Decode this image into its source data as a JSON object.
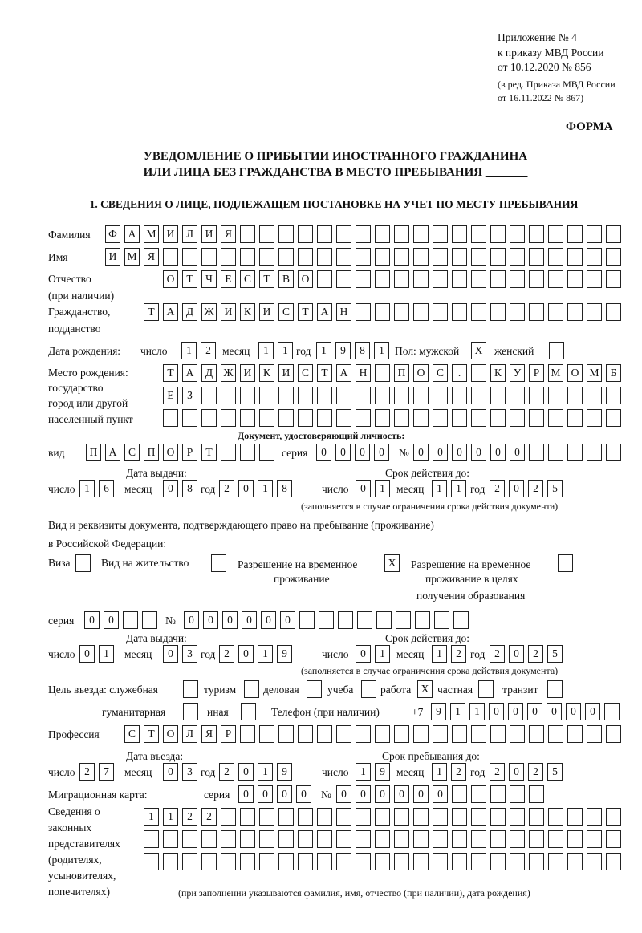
{
  "header": {
    "annex_line1": "Приложение № 4",
    "annex_line2": "к приказу МВД России",
    "annex_line3": "от 10.12.2020 № 856",
    "annex_line4": "(в ред. Приказа МВД России",
    "annex_line5": "от 16.11.2022 № 867)",
    "form_label": "ФОРМА",
    "title_line1": "УВЕДОМЛЕНИЕ О ПРИБЫТИИ ИНОСТРАННОГО ГРАЖДАНИНА",
    "title_line2": "ИЛИ ЛИЦА БЕЗ ГРАЖДАНСТВА В МЕСТО ПРЕБЫВАНИЯ _______",
    "section1": "1. СВЕДЕНИЯ О ЛИЦЕ, ПОДЛЕЖАЩЕМ ПОСТАНОВКЕ НА УЧЕТ ПО МЕСТУ ПРЕБЫВАНИЯ"
  },
  "labels": {
    "surname": "Фамилия",
    "name": "Имя",
    "patronymic": "Отчество",
    "patronymic2": "(при наличии)",
    "citizenship": "Гражданство,",
    "citizenship2": "подданство",
    "birth_date": "Дата рождения:",
    "day": "число",
    "month": "месяц",
    "year": "год",
    "sex": "Пол: мужской",
    "female": "женский",
    "birth_place": "Место рождения:",
    "state": "государство",
    "city": "город или другой",
    "settlement": "населенный пункт",
    "id_doc": "Документ, удостоверяющий личность:",
    "kind": "вид",
    "series": "серия",
    "number": "№",
    "issue_date": "Дата выдачи:",
    "valid_until": "Срок действия до:",
    "validity_note": "(заполняется в случае ограничения срока действия документа)",
    "right_doc1": "Вид и реквизиты документа, подтверждающего право на пребывание (проживание)",
    "right_doc2": "в Российской Федерации:",
    "visa": "Виза",
    "residence": "Вид на жительство",
    "temp1": "Разрешение на временное",
    "temp2": "проживание",
    "edu1": "Разрешение на временное",
    "edu2": "проживание в целях",
    "edu3": "получения образования",
    "purpose": "Цель въезда: служебная",
    "tourism": "туризм",
    "business": "деловая",
    "study": "учеба",
    "work": "работа",
    "private": "частная",
    "transit": "транзит",
    "humanitarian": "гуманитарная",
    "other": "иная",
    "phone": "Телефон (при наличии)",
    "phone_prefix": "+7",
    "profession": "Профессия",
    "entry_date": "Дата въезда:",
    "stay_until": "Срок пребывания до:",
    "migration_card": "Миграционная карта:",
    "rep1": "Сведения о",
    "rep2": "законных",
    "rep3": "представителях",
    "rep4": "(родителях,",
    "rep5": "усыновителях,",
    "rep6": "попечителях)",
    "rep_note": "(при заполнении указываются фамилия, имя, отчество (при наличии), дата рождения)"
  },
  "fields": {
    "surname": "ФАМИЛИЯ",
    "name": "ИМЯ",
    "patronymic": "ОТЧЕСТВО",
    "citizenship": "ТАДЖИКИСТАН",
    "birth_day": "12",
    "birth_month": "11",
    "birth_year": "1981",
    "sex_male": "X",
    "sex_female": "",
    "birth_place_1": "ТАДЖИКИСТАН ПОС. КУРМОМБ",
    "birth_place_2": "ЕЗ",
    "birth_place_3": "",
    "doc_kind": "ПАСПОРТ",
    "doc_series": "0000",
    "doc_number": "000000",
    "doc_issue_day": "16",
    "doc_issue_month": "08",
    "doc_issue_year": "2018",
    "doc_valid_day": "01",
    "doc_valid_month": "11",
    "doc_valid_year": "2025",
    "right_visa": "",
    "right_residence": "",
    "right_temp": "X",
    "right_edu": "",
    "right_series": "00",
    "right_number": "000000",
    "right_issue_day": "01",
    "right_issue_month": "03",
    "right_issue_year": "2019",
    "right_valid_day": "01",
    "right_valid_month": "12",
    "right_valid_year": "2025",
    "purpose_official": "",
    "purpose_tourism": "",
    "purpose_business": "",
    "purpose_study": "",
    "purpose_work": "X",
    "purpose_private": "",
    "purpose_transit": "",
    "purpose_humanitarian": "",
    "purpose_other": "",
    "phone": "911000000",
    "profession": "СТОЛЯР",
    "entry_day": "27",
    "entry_month": "03",
    "entry_year": "2019",
    "stay_day": "19",
    "stay_month": "12",
    "stay_year": "2025",
    "mc_series": "0000",
    "mc_number": "000000",
    "rep_1": "1122",
    "rep_2": "",
    "rep_3": ""
  }
}
